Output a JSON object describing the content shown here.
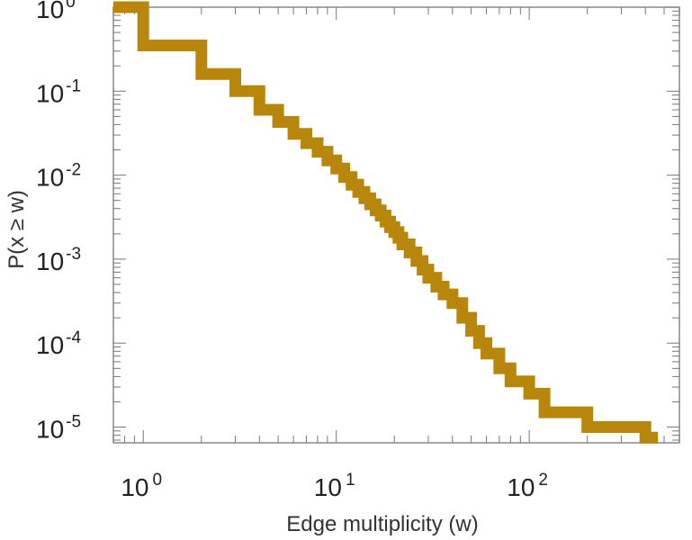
{
  "chart_data": {
    "type": "line",
    "xlabel": "Edge multiplicity (w)",
    "ylabel": "P(x ≥ w)",
    "xscale": "log",
    "yscale": "log",
    "xlim": [
      0.7,
      600
    ],
    "ylim": [
      6.5e-06,
      1.0
    ],
    "grid": false,
    "color": "#b8860b",
    "x_ticks": [
      {
        "base": "10",
        "exp": "0",
        "value": 1
      },
      {
        "base": "10",
        "exp": "1",
        "value": 10
      },
      {
        "base": "10",
        "exp": "2",
        "value": 100
      }
    ],
    "y_ticks": [
      {
        "base": "10",
        "exp": "0",
        "value": 1
      },
      {
        "base": "10",
        "exp": "-1",
        "value": 0.1
      },
      {
        "base": "10",
        "exp": "-2",
        "value": 0.01
      },
      {
        "base": "10",
        "exp": "-3",
        "value": 0.001
      },
      {
        "base": "10",
        "exp": "-4",
        "value": 0.0001
      },
      {
        "base": "10",
        "exp": "-5",
        "value": 1e-05
      }
    ],
    "series": [
      {
        "x": [
          0.7,
          1,
          2,
          3,
          4,
          5,
          6,
          7,
          8,
          9,
          10,
          11,
          12,
          13,
          14,
          15,
          16,
          17,
          18,
          19,
          20,
          21,
          22,
          24,
          26,
          28,
          30,
          33,
          36,
          40,
          45,
          50,
          55,
          60,
          70,
          80,
          100,
          120,
          200,
          400
        ],
        "y": [
          1.0,
          0.35,
          0.16,
          0.1,
          0.06,
          0.043,
          0.031,
          0.024,
          0.019,
          0.015,
          0.012,
          0.0095,
          0.0077,
          0.0063,
          0.0053,
          0.0045,
          0.0038,
          0.0033,
          0.0028,
          0.0024,
          0.0021,
          0.0018,
          0.0015,
          0.0012,
          0.00095,
          0.00075,
          0.0006,
          0.00047,
          0.00038,
          0.0003,
          0.0002,
          0.00014,
          0.0001,
          7.5e-05,
          5e-05,
          3.5e-05,
          2.5e-05,
          1.5e-05,
          1e-05,
          7.5e-06
        ]
      }
    ]
  }
}
